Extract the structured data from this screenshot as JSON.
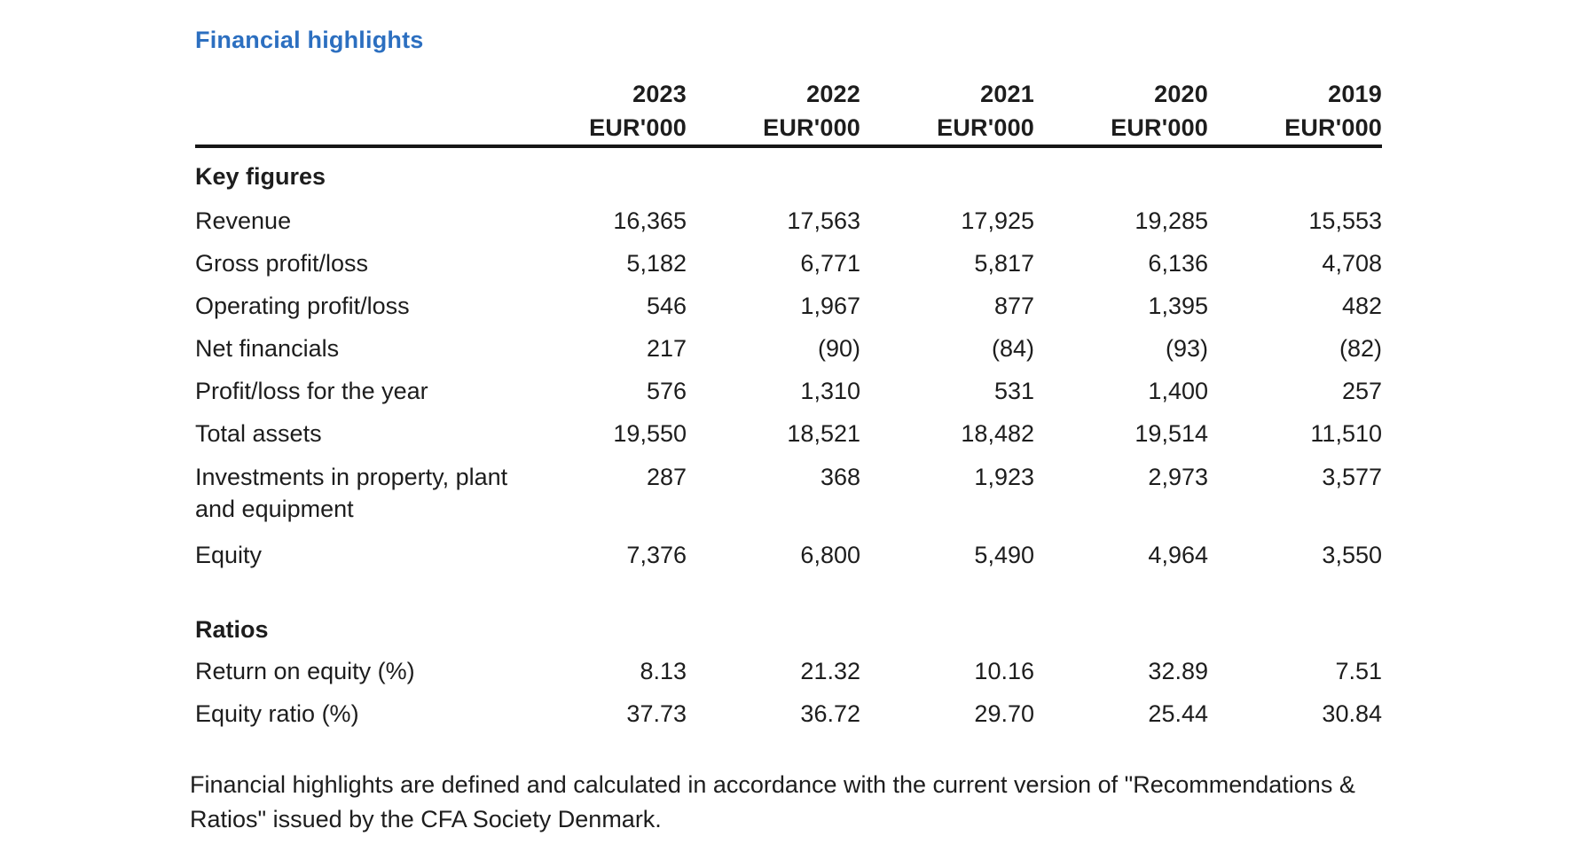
{
  "page": {
    "title": "Financial highlights",
    "title_color": "#2c6fc0"
  },
  "table": {
    "years": [
      "2023",
      "2022",
      "2021",
      "2020",
      "2019"
    ],
    "units": [
      "EUR'000",
      "EUR'000",
      "EUR'000",
      "EUR'000",
      "EUR'000"
    ],
    "section_key_figures": "Key figures",
    "section_ratios": "Ratios",
    "rows": [
      {
        "label": "Revenue",
        "values": [
          "16,365",
          "17,563",
          "17,925",
          "19,285",
          "15,553"
        ]
      },
      {
        "label": "Gross profit/loss",
        "values": [
          "5,182",
          "6,771",
          "5,817",
          "6,136",
          "4,708"
        ]
      },
      {
        "label": "Operating profit/loss",
        "values": [
          "546",
          "1,967",
          "877",
          "1,395",
          "482"
        ]
      },
      {
        "label": "Net financials",
        "values": [
          "217",
          "(90)",
          "(84)",
          "(93)",
          "(82)"
        ]
      },
      {
        "label": "Profit/loss for the year",
        "values": [
          "576",
          "1,310",
          "531",
          "1,400",
          "257"
        ]
      },
      {
        "label": "Total assets",
        "values": [
          "19,550",
          "18,521",
          "18,482",
          "19,514",
          "11,510"
        ]
      },
      {
        "label": "Investments in property, plant and equipment",
        "values": [
          "287",
          "368",
          "1,923",
          "2,973",
          "3,577"
        ]
      },
      {
        "label": "Equity",
        "values": [
          "7,376",
          "6,800",
          "5,490",
          "4,964",
          "3,550"
        ]
      }
    ],
    "ratio_rows": [
      {
        "label": "Return on equity (%)",
        "values": [
          "8.13",
          "21.32",
          "10.16",
          "32.89",
          "7.51"
        ]
      },
      {
        "label": "Equity ratio (%)",
        "values": [
          "37.73",
          "36.72",
          "29.70",
          "25.44",
          "30.84"
        ]
      }
    ]
  },
  "footer": {
    "lines": [
      "Financial highlights are defined and calculated in accordance with the current version of \"Recommendations &",
      "Ratios\" issued by the CFA Society Denmark."
    ]
  }
}
